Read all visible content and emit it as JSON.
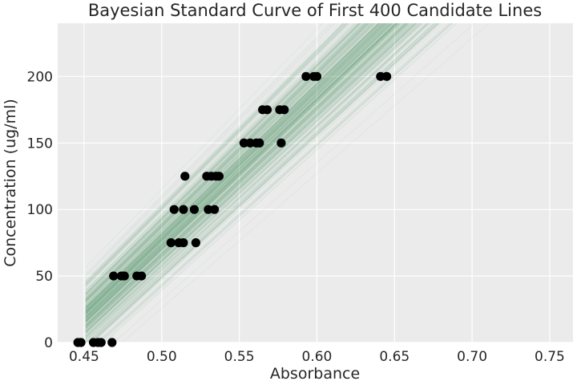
{
  "chart_data": {
    "type": "scatter",
    "title": "Bayesian Standard Curve of First 400 Candidate Lines",
    "xlabel": "Absorbance",
    "ylabel": "Concentration (ug/ml)",
    "xlim": [
      0.433,
      0.765
    ],
    "ylim": [
      0,
      240
    ],
    "xticks": [
      0.45,
      0.5,
      0.55,
      0.6,
      0.65,
      0.7,
      0.75
    ],
    "xtick_labels": [
      "0.45",
      "0.50",
      "0.55",
      "0.60",
      "0.65",
      "0.70",
      "0.75"
    ],
    "yticks": [
      0,
      50,
      100,
      150,
      200
    ],
    "ytick_labels": [
      "0",
      "50",
      "100",
      "150",
      "200"
    ],
    "grid": true,
    "legend": "none",
    "background_color": "#ebebeb",
    "grid_color": "#ffffff",
    "point_color": "#000000",
    "line_color": "#2e7d46",
    "points": [
      {
        "x": 0.446,
        "y": 0
      },
      {
        "x": 0.448,
        "y": 0
      },
      {
        "x": 0.456,
        "y": 0
      },
      {
        "x": 0.459,
        "y": 0
      },
      {
        "x": 0.461,
        "y": 0
      },
      {
        "x": 0.468,
        "y": 0
      },
      {
        "x": 0.469,
        "y": 50
      },
      {
        "x": 0.474,
        "y": 50
      },
      {
        "x": 0.476,
        "y": 50
      },
      {
        "x": 0.484,
        "y": 50
      },
      {
        "x": 0.487,
        "y": 50
      },
      {
        "x": 0.506,
        "y": 75
      },
      {
        "x": 0.511,
        "y": 75
      },
      {
        "x": 0.514,
        "y": 75
      },
      {
        "x": 0.522,
        "y": 75
      },
      {
        "x": 0.508,
        "y": 100
      },
      {
        "x": 0.514,
        "y": 100
      },
      {
        "x": 0.521,
        "y": 100
      },
      {
        "x": 0.53,
        "y": 100
      },
      {
        "x": 0.534,
        "y": 100
      },
      {
        "x": 0.515,
        "y": 125
      },
      {
        "x": 0.529,
        "y": 125
      },
      {
        "x": 0.532,
        "y": 125
      },
      {
        "x": 0.535,
        "y": 125
      },
      {
        "x": 0.537,
        "y": 125
      },
      {
        "x": 0.553,
        "y": 150
      },
      {
        "x": 0.557,
        "y": 150
      },
      {
        "x": 0.561,
        "y": 150
      },
      {
        "x": 0.563,
        "y": 150
      },
      {
        "x": 0.577,
        "y": 150
      },
      {
        "x": 0.565,
        "y": 175
      },
      {
        "x": 0.568,
        "y": 175
      },
      {
        "x": 0.576,
        "y": 175
      },
      {
        "x": 0.579,
        "y": 175
      },
      {
        "x": 0.593,
        "y": 200
      },
      {
        "x": 0.598,
        "y": 200
      },
      {
        "x": 0.6,
        "y": 200
      },
      {
        "x": 0.641,
        "y": 200
      },
      {
        "x": 0.645,
        "y": 200
      }
    ],
    "candidate_lines": {
      "count": 400,
      "x_range": [
        0.451,
        0.75
      ],
      "slope_mean": 1120,
      "slope_sd": 30,
      "intercept_mean": -485.5,
      "intercept_sd": 3
    }
  }
}
